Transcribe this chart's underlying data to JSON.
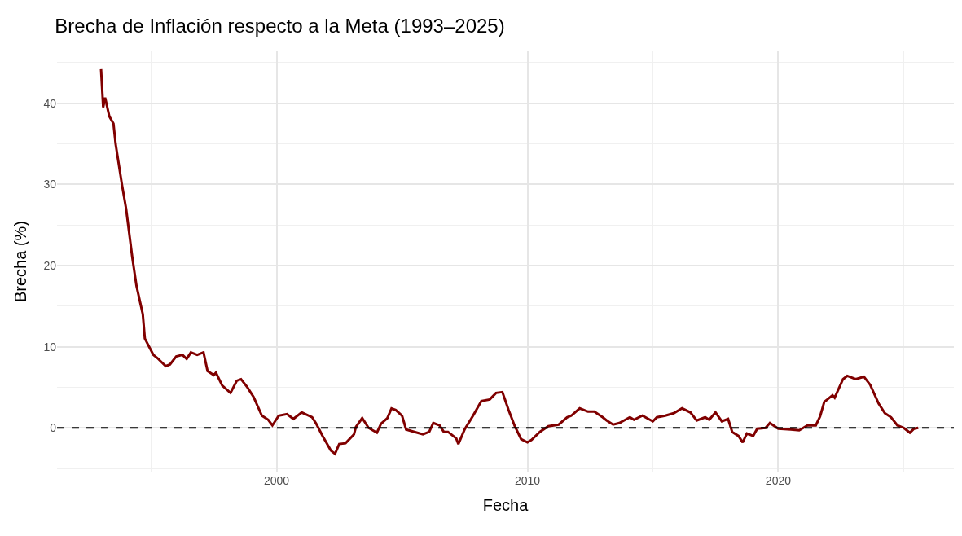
{
  "chart_data": {
    "type": "line",
    "title": "Brecha de Inflación respecto a la Meta (1993–2025)",
    "xlabel": "Fecha",
    "ylabel": "Brecha (%)",
    "x": [
      "1993-01",
      "1993-02",
      "1993-03",
      "1993-05",
      "1993-07",
      "1993-08",
      "1993-11",
      "1994-01",
      "1994-04",
      "1994-06",
      "1994-09",
      "1994-10",
      "1995-02",
      "1995-04",
      "1995-08",
      "1995-10",
      "1996-01",
      "1996-04",
      "1996-06",
      "1996-08",
      "1996-11",
      "1997-02",
      "1997-04",
      "1997-07",
      "1997-08",
      "1997-11",
      "1998-03",
      "1998-06",
      "1998-08",
      "1998-11",
      "1999-02",
      "1999-06",
      "1999-09",
      "1999-11",
      "2000-02",
      "2000-06",
      "2000-09",
      "2001-01",
      "2001-06",
      "2001-08",
      "2001-11",
      "2002-03",
      "2002-05",
      "2002-07",
      "2002-10",
      "2003-02",
      "2003-03",
      "2003-06",
      "2003-09",
      "2004-01",
      "2004-03",
      "2004-06",
      "2004-08",
      "2004-10",
      "2005-01",
      "2005-03",
      "2005-07",
      "2005-11",
      "2006-02",
      "2006-04",
      "2006-07",
      "2006-09",
      "2006-11",
      "2007-03",
      "2007-04",
      "2007-07",
      "2007-11",
      "2008-03",
      "2008-07",
      "2008-10",
      "2009-01",
      "2009-04",
      "2009-07",
      "2009-10",
      "2010-01",
      "2010-03",
      "2010-07",
      "2010-11",
      "2011-04",
      "2011-08",
      "2011-10",
      "2012-02",
      "2012-06",
      "2012-09",
      "2013-01",
      "2013-03",
      "2013-06",
      "2013-09",
      "2014-02",
      "2014-04",
      "2014-08",
      "2015-01",
      "2015-03",
      "2015-07",
      "2015-11",
      "2016-03",
      "2016-07",
      "2016-10",
      "2017-02",
      "2017-04",
      "2017-07",
      "2017-10",
      "2018-01",
      "2018-03",
      "2018-06",
      "2018-08",
      "2018-10",
      "2019-01",
      "2019-03",
      "2019-07",
      "2019-09",
      "2020-01",
      "2020-07",
      "2020-11",
      "2021-03",
      "2021-07",
      "2021-09",
      "2021-11",
      "2022-03",
      "2022-04",
      "2022-08",
      "2022-10",
      "2023-02",
      "2023-06",
      "2023-09",
      "2024-01",
      "2024-04",
      "2024-07",
      "2024-10",
      "2025-01",
      "2025-04",
      "2025-06",
      "2025-08"
    ],
    "series": [
      {
        "color": "#800000",
        "values": [
          44.2,
          39.5,
          40.7,
          38.4,
          37.5,
          35,
          30,
          27,
          21,
          17.5,
          14,
          11,
          9,
          8.6,
          7.6,
          7.8,
          8.8,
          9.0,
          8.5,
          9.3,
          9.0,
          9.3,
          7.0,
          6.5,
          6.8,
          5.2,
          4.3,
          5.8,
          6.0,
          5.0,
          3.8,
          1.5,
          1.0,
          0.3,
          1.5,
          1.7,
          1.1,
          1.9,
          1.3,
          0.5,
          -1.0,
          -2.8,
          -3.2,
          -2.0,
          -1.9,
          -0.8,
          0.1,
          1.2,
          0.0,
          -0.6,
          0.5,
          1.2,
          2.4,
          2.2,
          1.5,
          -0.2,
          -0.5,
          -0.8,
          -0.5,
          0.6,
          0.3,
          -0.5,
          -0.5,
          -1.3,
          -2.0,
          -0.2,
          1.5,
          3.3,
          3.5,
          4.3,
          4.4,
          2.2,
          0.2,
          -1.4,
          -1.8,
          -1.5,
          -0.5,
          0.2,
          0.4,
          1.3,
          1.5,
          2.4,
          2.0,
          2.0,
          1.3,
          0.9,
          0.4,
          0.6,
          1.3,
          1.0,
          1.5,
          0.8,
          1.3,
          1.5,
          1.8,
          2.4,
          1.9,
          0.9,
          1.3,
          1.0,
          1.9,
          0.8,
          1.1,
          -0.5,
          -1.0,
          -1.8,
          -0.7,
          -1.0,
          -0.1,
          0.0,
          0.6,
          -0.1,
          -0.2,
          -0.3,
          0.3,
          0.3,
          1.4,
          3.2,
          4.0,
          3.7,
          6.0,
          6.4,
          6.0,
          6.3,
          5.3,
          3.0,
          1.8,
          1.3,
          0.3,
          0.0,
          -0.6,
          -0.1,
          0.0
        ]
      }
    ],
    "xlim": [
      "1991-04",
      "2027-01"
    ],
    "xticks": [
      {
        "value": "2000",
        "label": "2000"
      },
      {
        "value": "2010",
        "label": "2010"
      },
      {
        "value": "2020",
        "label": "2020"
      }
    ],
    "ylim": [
      -5.5,
      46.5
    ],
    "yticks": [
      0,
      10,
      20,
      30,
      40
    ],
    "ref_lines": [
      {
        "axis": "y",
        "value": 0,
        "color": "#000000",
        "line_style": "dashed"
      }
    ],
    "grid": true,
    "line_style": "solid",
    "marker": "none"
  }
}
